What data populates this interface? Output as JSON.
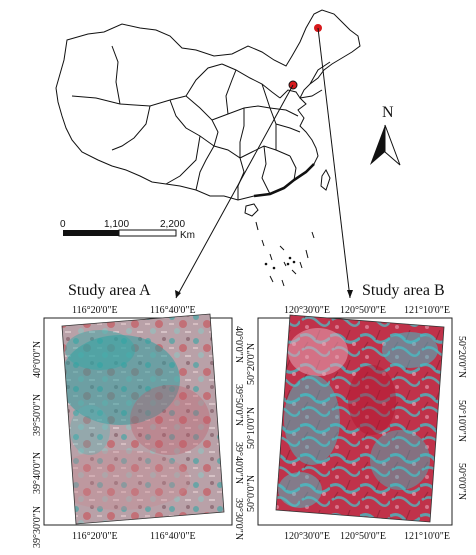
{
  "main_map": {
    "north_label": "N",
    "scale_bar": {
      "labels": [
        "0",
        "1,100",
        "2,200"
      ],
      "unit": "Km"
    }
  },
  "panel_a": {
    "title": "Study area A",
    "top_ticks": [
      "116°20'0\"E",
      "116°40'0\"E"
    ],
    "bottom_ticks": [
      "116°20'0\"E",
      "116°40'0\"E"
    ],
    "left_ticks": [
      "40°0'0\"N",
      "39°50'0\"N",
      "39°40'0\"N",
      "39°30'0\"N"
    ],
    "right_ticks": [
      "40°0'0\"N",
      "39°50'0\"N",
      "39°40'0\"N",
      "39°30'0\"N"
    ]
  },
  "panel_b": {
    "title": "Study area B",
    "top_ticks": [
      "120°30'0\"E",
      "120°50'0\"E",
      "121°10'0\"E"
    ],
    "bottom_ticks": [
      "120°30'0\"E",
      "120°50'0\"E",
      "121°10'0\"E"
    ],
    "left_ticks": [
      "50°20'0\"N",
      "50°10'0\"N",
      "50°0'0\"N"
    ],
    "right_ticks": [
      "50°20'0\"N",
      "50°10'0\"N",
      "50°0'0\"N"
    ]
  },
  "colors": {
    "study_area_marker": "#d7191c",
    "imagery_red": "#c8283c",
    "imagery_cyan": "#39b6c0",
    "imagery_pink": "#d89aa8"
  }
}
